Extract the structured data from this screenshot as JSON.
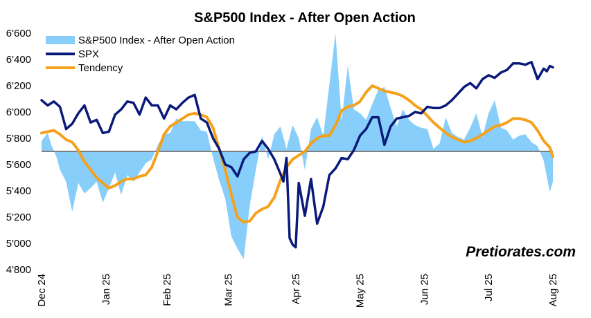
{
  "chart_data": {
    "type": "line",
    "title": "S&P500 Index - After Open Action",
    "y_ticks": [
      "6'600",
      "6'400",
      "6'200",
      "6'000",
      "5'800",
      "5'600",
      "5'400",
      "5'200",
      "5'000",
      "4'800"
    ],
    "y_tick_values": [
      6600,
      6400,
      6200,
      6000,
      5800,
      5600,
      5400,
      5200,
      5000,
      4800
    ],
    "ylim": [
      4800,
      6600
    ],
    "baseline": 5700,
    "x_ticks": [
      "Dec 24",
      "Jan 25",
      "Feb 25",
      "Mar 25",
      "Apr 25",
      "May 25",
      "Jun 25",
      "Jul 25",
      "Aug 25"
    ],
    "x_tick_index": [
      0,
      21,
      41,
      61,
      83,
      104,
      125,
      146,
      167
    ],
    "legend": {
      "position": "top-left",
      "entries": [
        "S&P500 Index - After Open Action",
        "SPX",
        "Tendency"
      ]
    },
    "watermark": "Pretiorates.com",
    "colors": {
      "area": "#87CEFA",
      "spx": "#0A1A7A",
      "tendency": "#F5A11C",
      "baseline": "#7F7F7F"
    },
    "series": [
      {
        "name": "S&P500 Index - After Open Action",
        "type": "area",
        "x": [
          0,
          2,
          3,
          5,
          6,
          8,
          10,
          12,
          14,
          16,
          18,
          20,
          22,
          24,
          26,
          28,
          30,
          32,
          34,
          36,
          38,
          40,
          42,
          44,
          46,
          48,
          50,
          52,
          54,
          56,
          58,
          60,
          62,
          64,
          66,
          68,
          70,
          72,
          74,
          76,
          78,
          80,
          82,
          84,
          86,
          88,
          90,
          92,
          94,
          96,
          98,
          100,
          102,
          104,
          106,
          108,
          110,
          112,
          114,
          116,
          118,
          120,
          122,
          124,
          126,
          128,
          130,
          132,
          134,
          136,
          138,
          140,
          142,
          144,
          146,
          148,
          150,
          152,
          154,
          156,
          158,
          160,
          162,
          164,
          166,
          167
        ],
        "values": [
          5780,
          5840,
          5760,
          5650,
          5560,
          5470,
          5240,
          5460,
          5380,
          5420,
          5470,
          5310,
          5420,
          5540,
          5370,
          5520,
          5470,
          5540,
          5610,
          5640,
          5750,
          5830,
          5840,
          5950,
          5930,
          5930,
          5930,
          5860,
          5850,
          5650,
          5480,
          5340,
          5050,
          4960,
          4880,
          5290,
          5560,
          5820,
          5640,
          5830,
          5890,
          5720,
          5900,
          5800,
          5560,
          5870,
          5960,
          5820,
          6210,
          6600,
          5930,
          6350,
          6020,
          5990,
          5940,
          6060,
          6170,
          6190,
          6030,
          5890,
          6020,
          5940,
          5900,
          5880,
          5870,
          5720,
          5760,
          5960,
          5840,
          5810,
          5790,
          5880,
          5990,
          5810,
          5990,
          6090,
          5880,
          5860,
          5790,
          5820,
          5830,
          5770,
          5740,
          5630,
          5390,
          5470
        ]
      },
      {
        "name": "SPX",
        "type": "line",
        "x": [
          0,
          2,
          4,
          6,
          8,
          10,
          12,
          14,
          16,
          18,
          20,
          22,
          24,
          26,
          28,
          30,
          32,
          34,
          36,
          38,
          40,
          42,
          44,
          46,
          48,
          50,
          52,
          54,
          56,
          58,
          60,
          62,
          64,
          66,
          68,
          70,
          72,
          74,
          76,
          78,
          79,
          80,
          81,
          82,
          83,
          84,
          86,
          88,
          90,
          92,
          94,
          96,
          98,
          100,
          102,
          104,
          106,
          108,
          110,
          112,
          114,
          116,
          118,
          120,
          122,
          124,
          126,
          128,
          130,
          132,
          134,
          136,
          138,
          140,
          142,
          144,
          146,
          148,
          150,
          152,
          154,
          156,
          158,
          160,
          162,
          164,
          165,
          166,
          167
        ],
        "values": [
          6090,
          6050,
          6080,
          6040,
          5870,
          5910,
          5990,
          6050,
          5920,
          5940,
          5840,
          5850,
          5980,
          6020,
          6080,
          6070,
          5980,
          6110,
          6050,
          6050,
          5950,
          6050,
          6020,
          6070,
          6110,
          6130,
          5950,
          5920,
          5800,
          5720,
          5600,
          5580,
          5510,
          5640,
          5690,
          5700,
          5780,
          5720,
          5640,
          5530,
          5470,
          5650,
          5040,
          4990,
          4970,
          5460,
          5210,
          5490,
          5150,
          5280,
          5520,
          5570,
          5650,
          5640,
          5710,
          5820,
          5870,
          5960,
          5960,
          5750,
          5890,
          5950,
          5960,
          5970,
          6000,
          5990,
          6040,
          6030,
          6030,
          6050,
          6090,
          6140,
          6190,
          6220,
          6180,
          6250,
          6280,
          6260,
          6300,
          6320,
          6370,
          6370,
          6360,
          6380,
          6250,
          6330,
          6310,
          6350,
          6340
        ]
      },
      {
        "name": "Tendency",
        "type": "line",
        "x": [
          0,
          2,
          4,
          6,
          8,
          10,
          12,
          14,
          16,
          18,
          20,
          22,
          24,
          26,
          28,
          30,
          32,
          34,
          36,
          38,
          40,
          42,
          44,
          46,
          48,
          50,
          52,
          54,
          56,
          58,
          60,
          62,
          64,
          66,
          68,
          70,
          72,
          74,
          76,
          78,
          80,
          82,
          84,
          86,
          88,
          90,
          92,
          94,
          96,
          98,
          100,
          102,
          104,
          106,
          108,
          110,
          112,
          114,
          116,
          118,
          120,
          122,
          124,
          126,
          128,
          130,
          132,
          134,
          136,
          138,
          140,
          142,
          144,
          146,
          148,
          150,
          152,
          154,
          156,
          158,
          160,
          162,
          164,
          166,
          167
        ],
        "values": [
          5840,
          5850,
          5860,
          5830,
          5790,
          5770,
          5710,
          5620,
          5560,
          5500,
          5460,
          5420,
          5440,
          5470,
          5490,
          5490,
          5510,
          5520,
          5580,
          5700,
          5830,
          5890,
          5920,
          5950,
          5980,
          5990,
          5980,
          5960,
          5880,
          5720,
          5560,
          5370,
          5200,
          5160,
          5170,
          5230,
          5260,
          5280,
          5350,
          5480,
          5580,
          5640,
          5670,
          5700,
          5760,
          5800,
          5820,
          5820,
          5900,
          6010,
          6040,
          6050,
          6080,
          6150,
          6200,
          6180,
          6160,
          6150,
          6140,
          6120,
          6090,
          6050,
          6020,
          5970,
          5920,
          5880,
          5840,
          5810,
          5790,
          5770,
          5780,
          5800,
          5830,
          5860,
          5890,
          5900,
          5920,
          5950,
          5950,
          5940,
          5920,
          5860,
          5780,
          5730,
          5660
        ]
      }
    ]
  }
}
